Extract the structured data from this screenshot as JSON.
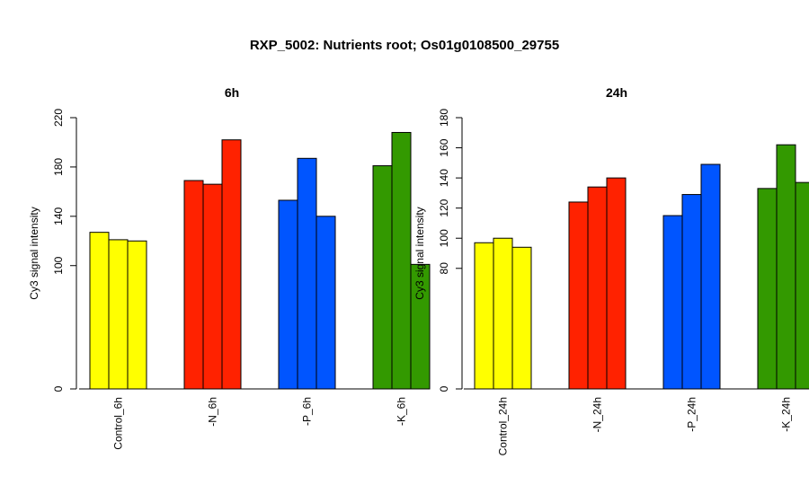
{
  "title": "RXP_5002: Nutrients root; Os01g0108500_29755",
  "chart_data": [
    {
      "type": "bar",
      "title": "6h",
      "ylabel": "Cy3 signal intensity",
      "xlabel": "",
      "ylim": [
        0,
        220
      ],
      "ytick_labels": [
        "0",
        "100",
        "140",
        "180",
        "220"
      ],
      "categories": [
        "Control_6h",
        "-N_6h",
        "-P_6h",
        "-K_6h"
      ],
      "groups": [
        {
          "label": "Control_6h",
          "color": "#ffff00",
          "values": [
            127,
            121,
            120
          ]
        },
        {
          "label": "-N_6h",
          "color": "#ff2200",
          "values": [
            169,
            166,
            202
          ]
        },
        {
          "label": "-P_6h",
          "color": "#0055ff",
          "values": [
            153,
            187,
            140
          ]
        },
        {
          "label": "-K_6h",
          "color": "#339900",
          "values": [
            181,
            208,
            101
          ]
        }
      ]
    },
    {
      "type": "bar",
      "title": "24h",
      "ylabel": "Cy3 signal intensity",
      "xlabel": "",
      "ylim": [
        0,
        180
      ],
      "ytick_labels": [
        "0",
        "80",
        "100",
        "120",
        "140",
        "160",
        "180"
      ],
      "categories": [
        "Control_24h",
        "-N_24h",
        "-P_24h",
        "-K_24h"
      ],
      "groups": [
        {
          "label": "Control_24h",
          "color": "#ffff00",
          "values": [
            97,
            100,
            94
          ]
        },
        {
          "label": "-N_24h",
          "color": "#ff2200",
          "values": [
            124,
            134,
            140
          ]
        },
        {
          "label": "-P_24h",
          "color": "#0055ff",
          "values": [
            115,
            129,
            149
          ]
        },
        {
          "label": "-K_24h",
          "color": "#339900",
          "values": [
            133,
            162,
            137
          ]
        }
      ]
    }
  ]
}
